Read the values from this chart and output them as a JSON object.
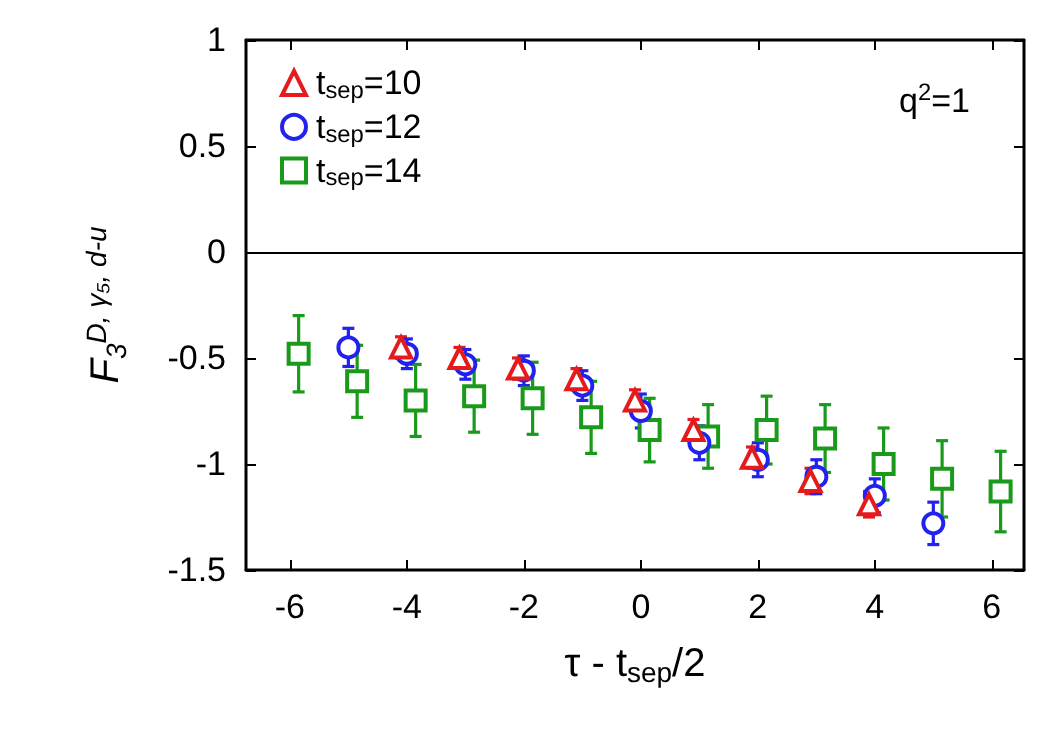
{
  "chart_data": {
    "type": "scatter",
    "xlabel": "τ - t$_{sep}$/2",
    "ylabel": "F$_{3}$$^{D, γ₅, d-u}$",
    "annotations": [
      "q$^{2}$=1"
    ],
    "xlim": [
      -6.75,
      6.55
    ],
    "xticks": [
      -6,
      -4,
      -2,
      0,
      2,
      4,
      6
    ],
    "ylim": [
      -1.5,
      1
    ],
    "yticks": [
      -1.5,
      -1,
      -0.5,
      0,
      0.5,
      1
    ],
    "grid": false,
    "legend": "top left",
    "ref_lines": [
      {
        "axis": "y",
        "value": 0,
        "color": "#000000"
      }
    ],
    "series": [
      {
        "name": "t$_{sep}$=10",
        "color": "#e41a1c",
        "marker": "triangle",
        "x": [
          -4.1,
          -3.1,
          -2.1,
          -1.1,
          -0.1,
          0.9,
          1.9,
          2.9,
          3.9
        ],
        "values": [
          -0.45,
          -0.5,
          -0.55,
          -0.6,
          -0.7,
          -0.84,
          -0.97,
          -1.08,
          -1.19
        ],
        "errors": [
          0.05,
          0.05,
          0.05,
          0.05,
          0.05,
          0.05,
          0.05,
          0.06,
          0.06
        ]
      },
      {
        "name": "t$_{sep}$=12",
        "color": "#2222ee",
        "marker": "circle",
        "x": [
          -5,
          -4,
          -3,
          -2,
          -1,
          0,
          1,
          2,
          3,
          4,
          5
        ],
        "values": [
          -0.45,
          -0.48,
          -0.53,
          -0.56,
          -0.63,
          -0.75,
          -0.9,
          -0.98,
          -1.06,
          -1.15,
          -1.28
        ],
        "errors": [
          0.09,
          0.07,
          0.07,
          0.07,
          0.07,
          0.08,
          0.08,
          0.08,
          0.08,
          0.08,
          0.1
        ]
      },
      {
        "name": "t$_{sep}$=14",
        "color": "#1a9a1a",
        "marker": "square",
        "x": [
          -5.85,
          -4.85,
          -3.85,
          -2.85,
          -1.85,
          -0.85,
          0.15,
          1.15,
          2.15,
          3.15,
          4.15,
          5.15,
          6.15
        ],
        "values": [
          -0.48,
          -0.61,
          -0.7,
          -0.68,
          -0.69,
          -0.78,
          -0.84,
          -0.87,
          -0.84,
          -0.88,
          -1.0,
          -1.07,
          -1.13
        ],
        "errors": [
          0.18,
          0.17,
          0.17,
          0.17,
          0.17,
          0.17,
          0.15,
          0.15,
          0.16,
          0.16,
          0.17,
          0.18,
          0.19
        ]
      }
    ]
  }
}
